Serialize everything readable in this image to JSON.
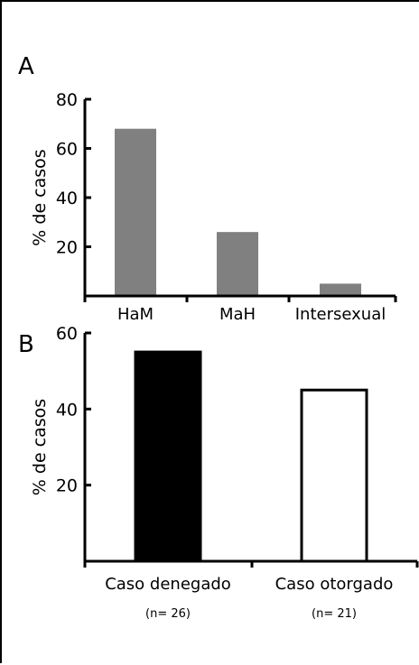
{
  "chart_data": [
    {
      "panel_label": "A",
      "type": "bar",
      "ylabel": "% de casos",
      "ylim": [
        0,
        80
      ],
      "yticks": [
        "20",
        "40",
        "60",
        "80"
      ],
      "categories": [
        "HaM",
        "MaH",
        "Intersexual"
      ],
      "values": [
        68,
        26,
        5
      ],
      "bar_color": "#808080",
      "grid": false
    },
    {
      "panel_label": "B",
      "type": "bar",
      "ylabel": "% de casos",
      "ylim": [
        0,
        60
      ],
      "yticks": [
        "20",
        "40",
        "60"
      ],
      "categories": [
        "Caso denegado",
        "Caso otorgado"
      ],
      "sublabels": [
        "(n= 26)",
        "(n= 21)"
      ],
      "values": [
        55,
        45
      ],
      "bar_fills": [
        "#000000",
        "#ffffff"
      ],
      "bar_stroke": "#000000",
      "grid": false
    }
  ]
}
